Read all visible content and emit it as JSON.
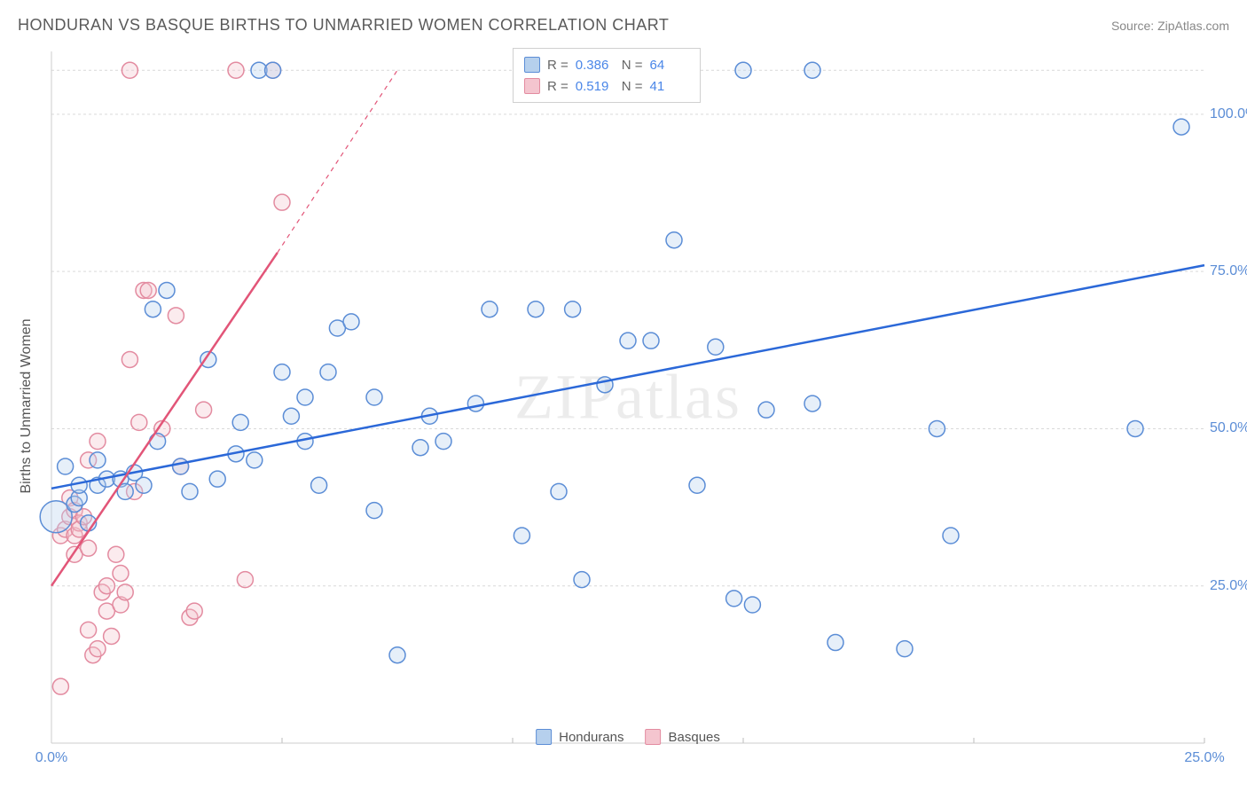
{
  "title": "HONDURAN VS BASQUE BIRTHS TO UNMARRIED WOMEN CORRELATION CHART",
  "source_label": "Source:",
  "source_name": "ZipAtlas.com",
  "y_axis_label": "Births to Unmarried Women",
  "watermark": "ZIPatlas",
  "chart": {
    "type": "scatter",
    "xlim": [
      0,
      25
    ],
    "ylim": [
      0,
      110
    ],
    "x_ticks": [
      {
        "v": 0,
        "label": "0.0%"
      },
      {
        "v": 25,
        "label": "25.0%"
      }
    ],
    "y_ticks": [
      {
        "v": 25,
        "label": "25.0%"
      },
      {
        "v": 50,
        "label": "50.0%"
      },
      {
        "v": 75,
        "label": "75.0%"
      },
      {
        "v": 100,
        "label": "100.0%"
      }
    ],
    "grid_color": "#d9d9d9",
    "axis_color": "#cccccc",
    "background_color": "#ffffff",
    "marker_radius": 9,
    "large_marker_radius": 18,
    "series": [
      {
        "name": "Hondurans",
        "fill": "#b6d0ed",
        "stroke": "#5b8dd6",
        "trend_color": "#2b68d8",
        "r": 0.386,
        "n": 64,
        "trend": {
          "x0": 0,
          "y0": 40.5,
          "x1": 25,
          "y1": 76
        },
        "points": [
          [
            0.1,
            36,
            18
          ],
          [
            0.3,
            44,
            9
          ],
          [
            0.5,
            38,
            9
          ],
          [
            0.6,
            39,
            9
          ],
          [
            0.6,
            41,
            9
          ],
          [
            0.8,
            35,
            9
          ],
          [
            1.0,
            41,
            9
          ],
          [
            1.0,
            45,
            9
          ],
          [
            1.2,
            42,
            9
          ],
          [
            1.5,
            42,
            9
          ],
          [
            1.6,
            40,
            9
          ],
          [
            1.8,
            43,
            9
          ],
          [
            2.0,
            41,
            9
          ],
          [
            2.2,
            69,
            9
          ],
          [
            2.5,
            72,
            9
          ],
          [
            2.3,
            48,
            9
          ],
          [
            2.8,
            44,
            9
          ],
          [
            3.0,
            40,
            9
          ],
          [
            3.4,
            61,
            9
          ],
          [
            3.6,
            42,
            9
          ],
          [
            4.0,
            46,
            9
          ],
          [
            4.1,
            51,
            9
          ],
          [
            4.4,
            45,
            9
          ],
          [
            4.5,
            107,
            9
          ],
          [
            4.8,
            107,
            9
          ],
          [
            5.0,
            59,
            9
          ],
          [
            5.2,
            52,
            9
          ],
          [
            5.5,
            48,
            9
          ],
          [
            5.5,
            55,
            9
          ],
          [
            5.8,
            41,
            9
          ],
          [
            6.0,
            59,
            9
          ],
          [
            6.2,
            66,
            9
          ],
          [
            6.5,
            67,
            9
          ],
          [
            7.0,
            37,
            9
          ],
          [
            7.0,
            55,
            9
          ],
          [
            7.5,
            14,
            9
          ],
          [
            8.0,
            47,
            9
          ],
          [
            8.2,
            52,
            9
          ],
          [
            8.5,
            48,
            9
          ],
          [
            9.2,
            54,
            9
          ],
          [
            9.5,
            69,
            9
          ],
          [
            10.2,
            33,
            9
          ],
          [
            10.5,
            69,
            9
          ],
          [
            11.0,
            40,
            9
          ],
          [
            11.3,
            69,
            9
          ],
          [
            11.5,
            26,
            9
          ],
          [
            12.0,
            57,
            9
          ],
          [
            12.5,
            64,
            9
          ],
          [
            13.0,
            64,
            9
          ],
          [
            13.5,
            80,
            9
          ],
          [
            14.0,
            41,
            9
          ],
          [
            14.4,
            63,
            9
          ],
          [
            14.8,
            23,
            9
          ],
          [
            15.2,
            22,
            9
          ],
          [
            15.0,
            107,
            9
          ],
          [
            15.5,
            53,
            9
          ],
          [
            16.5,
            54,
            9
          ],
          [
            16.5,
            107,
            9
          ],
          [
            17.0,
            16,
            9
          ],
          [
            18.5,
            15,
            9
          ],
          [
            19.2,
            50,
            9
          ],
          [
            19.5,
            33,
            9
          ],
          [
            23.5,
            50,
            9
          ],
          [
            24.5,
            98,
            9
          ]
        ]
      },
      {
        "name": "Basques",
        "fill": "#f4c5cf",
        "stroke": "#e38ba0",
        "trend_color": "#e25578",
        "r": 0.519,
        "n": 41,
        "trend": {
          "x0": 0,
          "y0": 25,
          "x1": 4.9,
          "y1": 78
        },
        "trend_dash": {
          "x0": 4.9,
          "y0": 78,
          "x1": 7.5,
          "y1": 107
        },
        "points": [
          [
            0.2,
            33,
            9
          ],
          [
            0.2,
            9,
            9
          ],
          [
            0.3,
            34,
            9
          ],
          [
            0.4,
            39,
            9
          ],
          [
            0.4,
            36,
            9
          ],
          [
            0.5,
            30,
            9
          ],
          [
            0.5,
            33,
            9
          ],
          [
            0.5,
            37,
            9
          ],
          [
            0.6,
            35,
            9
          ],
          [
            0.6,
            34,
            9
          ],
          [
            0.7,
            36,
            9
          ],
          [
            0.8,
            45,
            9
          ],
          [
            0.8,
            31,
            9
          ],
          [
            0.8,
            18,
            9
          ],
          [
            0.9,
            14,
            9
          ],
          [
            1.0,
            15,
            9
          ],
          [
            1.0,
            48,
            9
          ],
          [
            1.1,
            24,
            9
          ],
          [
            1.2,
            21,
            9
          ],
          [
            1.2,
            25,
            9
          ],
          [
            1.3,
            17,
            9
          ],
          [
            1.4,
            30,
            9
          ],
          [
            1.5,
            22,
            9
          ],
          [
            1.5,
            27,
            9
          ],
          [
            1.6,
            24,
            9
          ],
          [
            1.7,
            61,
            9
          ],
          [
            1.7,
            107,
            9
          ],
          [
            1.8,
            40,
            9
          ],
          [
            1.9,
            51,
            9
          ],
          [
            2.0,
            72,
            9
          ],
          [
            2.1,
            72,
            9
          ],
          [
            2.4,
            50,
            9
          ],
          [
            2.7,
            68,
            9
          ],
          [
            2.8,
            44,
            9
          ],
          [
            3.0,
            20,
            9
          ],
          [
            3.1,
            21,
            9
          ],
          [
            3.3,
            53,
            9
          ],
          [
            4.0,
            107,
            9
          ],
          [
            4.2,
            26,
            9
          ],
          [
            4.8,
            107,
            9
          ],
          [
            5.0,
            86,
            9
          ]
        ]
      }
    ],
    "stats_box": {
      "left_pct": 40,
      "top_pct": 0
    },
    "bottom_legend": true
  },
  "legend_series_label_0": "Hondurans",
  "legend_series_label_1": "Basques",
  "stat_r_label": "R =",
  "stat_n_label": "N ="
}
